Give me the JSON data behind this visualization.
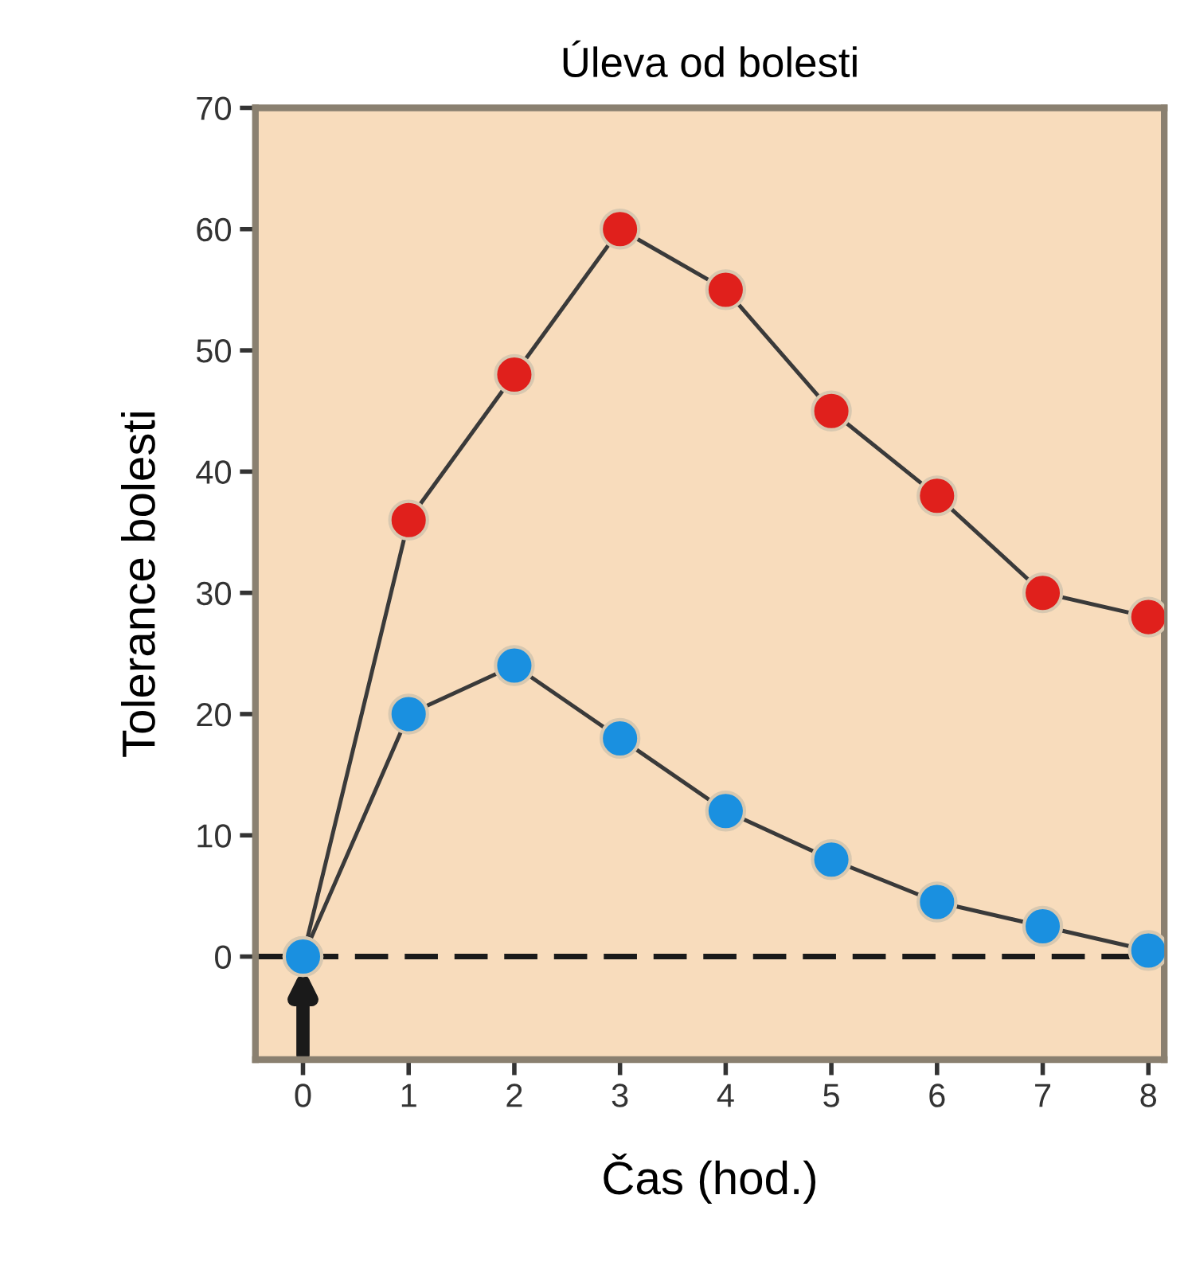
{
  "chart_data": {
    "type": "line",
    "title": "Úleva od bolesti",
    "xlabel": "Čas (hod.)",
    "ylabel": "Tolerance bolesti",
    "x": [
      0,
      1,
      2,
      3,
      4,
      5,
      6,
      7,
      8
    ],
    "series": [
      {
        "color": "#e0201c",
        "values": [
          0,
          36,
          48,
          60,
          55,
          45,
          38,
          30,
          28
        ]
      },
      {
        "color": "#1a90e0",
        "values": [
          0,
          20,
          24,
          18,
          12,
          8,
          4.5,
          2.5,
          0.5
        ]
      }
    ],
    "xlim": [
      -0.45,
      8.15
    ],
    "xticks": [
      0,
      1,
      2,
      3,
      4,
      5,
      6,
      7,
      8
    ],
    "ylim": [
      -8.5,
      70
    ],
    "yticks": [
      0,
      10,
      20,
      30,
      40,
      50,
      60,
      70
    ],
    "marker": "circle",
    "line_style": "solid",
    "grid": false,
    "legend": false,
    "ref_lines": [
      {
        "axis": "y",
        "value": 0,
        "label": null,
        "color": "#1a1a1a",
        "line_style": "dashed"
      }
    ]
  }
}
